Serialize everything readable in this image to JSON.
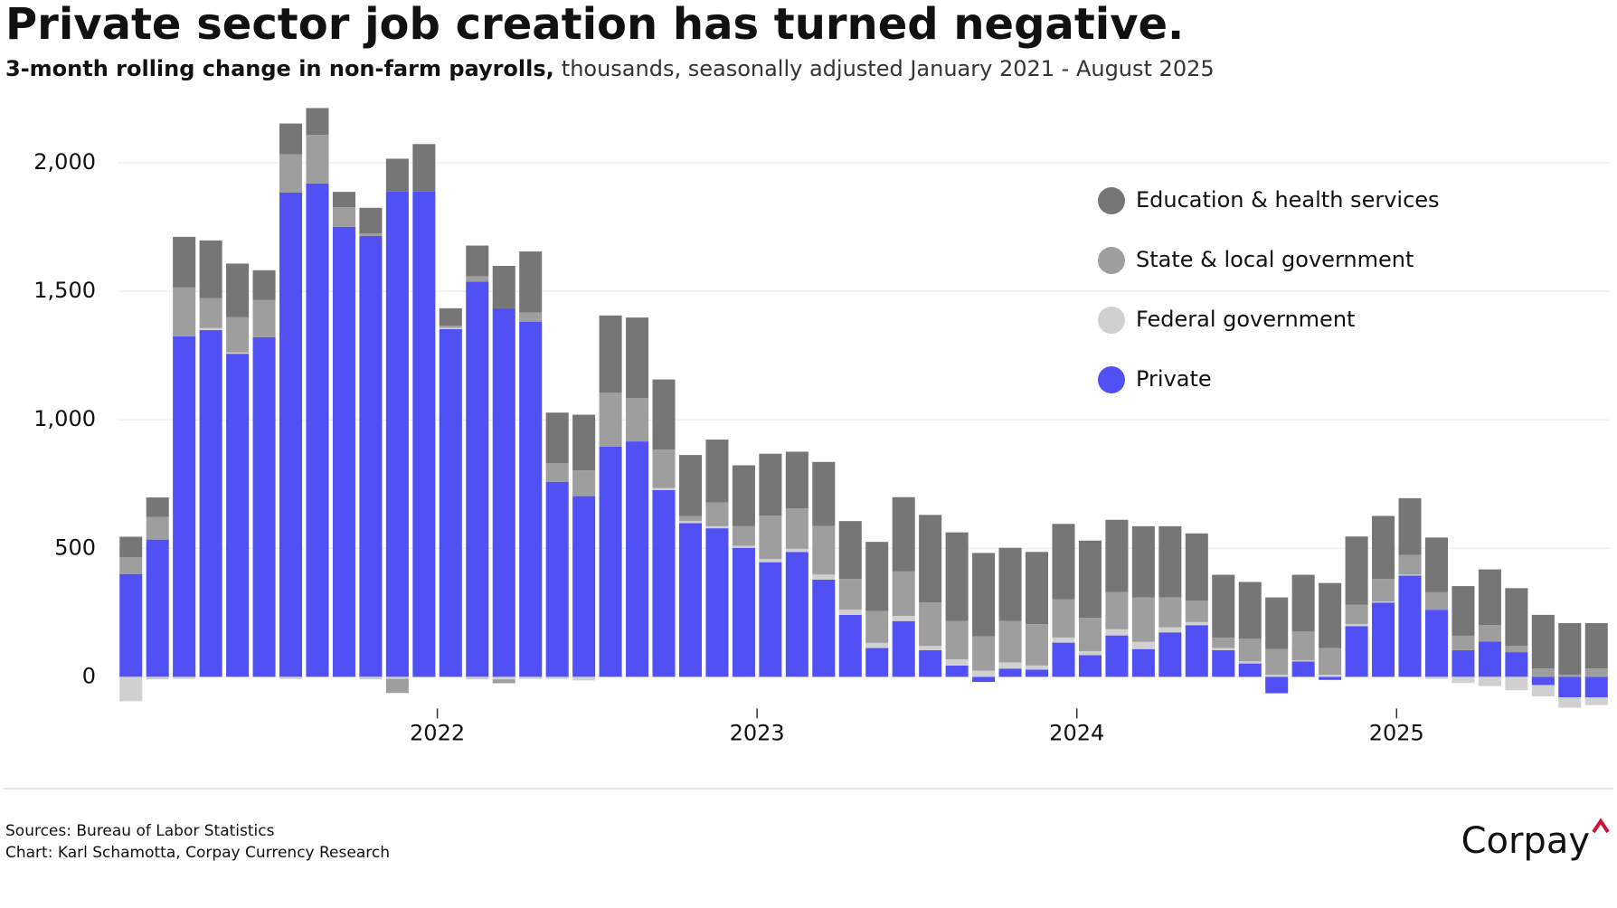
{
  "chart_data": {
    "type": "bar",
    "stacked": true,
    "title": "Private sector job creation has turned negative.",
    "subtitle_bold": "3-month rolling change in non-farm payrolls,",
    "subtitle": "thousands, seasonally adjusted January 2021 - August 2025",
    "categories": [
      null,
      null,
      null,
      null,
      null,
      null,
      null,
      null,
      null,
      null,
      null,
      null,
      "2022",
      null,
      null,
      null,
      null,
      null,
      null,
      null,
      null,
      null,
      null,
      null,
      "2023",
      null,
      null,
      null,
      null,
      null,
      null,
      null,
      null,
      null,
      null,
      null,
      "2024",
      null,
      null,
      null,
      null,
      null,
      null,
      null,
      null,
      null,
      null,
      null,
      "2025",
      null,
      null,
      null,
      null,
      null,
      null,
      null
    ],
    "series": [
      {
        "name": "Private",
        "color": "#5050f5",
        "values": [
          400,
          534,
          1325,
          1349,
          1257,
          1321,
          1884,
          1920,
          1751,
          1715,
          1888,
          1888,
          1353,
          1538,
          1434,
          1382,
          759,
          703,
          896,
          916,
          727,
          598,
          578,
          502,
          446,
          486,
          378,
          241,
          112,
          217,
          104,
          44,
          -20,
          32,
          28,
          133,
          84,
          161,
          108,
          173,
          201,
          104,
          52,
          -64,
          60,
          -12,
          197,
          289,
          394,
          261,
          104,
          137,
          96,
          -32,
          -80,
          -80
        ]
      },
      {
        "name": "Federal government",
        "color": "#d0d0d0",
        "values": [
          -95,
          -10,
          -8,
          8,
          5,
          0,
          -8,
          0,
          0,
          -10,
          -8,
          -3,
          5,
          -10,
          -10,
          -8,
          -8,
          -14,
          0,
          0,
          8,
          8,
          8,
          8,
          12,
          12,
          20,
          20,
          20,
          20,
          16,
          24,
          24,
          24,
          16,
          20,
          16,
          24,
          28,
          20,
          12,
          8,
          8,
          8,
          4,
          8,
          8,
          4,
          4,
          -8,
          -24,
          -36,
          -52,
          -44,
          -40,
          -30
        ]
      },
      {
        "name": "State & local government",
        "color": "#9e9e9e",
        "values": [
          65,
          88,
          190,
          116,
          137,
          145,
          149,
          189,
          76,
          10,
          -55,
          0,
          8,
          20,
          -15,
          36,
          72,
          100,
          209,
          169,
          149,
          20,
          92,
          76,
          169,
          157,
          189,
          120,
          124,
          173,
          169,
          149,
          133,
          161,
          161,
          149,
          129,
          145,
          173,
          116,
          84,
          40,
          88,
          100,
          112,
          104,
          76,
          88,
          76,
          68,
          56,
          64,
          24,
          32,
          8,
          32
        ]
      },
      {
        "name": "Education & health services",
        "color": "#767676",
        "values": [
          80,
          76,
          197,
          225,
          209,
          116,
          120,
          104,
          60,
          100,
          128,
          185,
          68,
          120,
          165,
          237,
          197,
          217,
          301,
          313,
          273,
          237,
          245,
          237,
          241,
          221,
          249,
          225,
          269,
          289,
          341,
          345,
          325,
          285,
          281,
          293,
          301,
          281,
          277,
          277,
          261,
          245,
          221,
          201,
          221,
          253,
          265,
          245,
          221,
          213,
          193,
          217,
          225,
          209,
          201,
          177
        ]
      }
    ],
    "legend_order": [
      3,
      2,
      1,
      0
    ],
    "ylim": [
      -150,
      2250
    ],
    "yticks": [
      0,
      500,
      {
        "value": 1000,
        "label": "1,000"
      },
      {
        "value": 1500,
        "label": "1,500"
      },
      {
        "value": 2000,
        "label": "2,000"
      }
    ],
    "grid": true,
    "legend_position": "upper right",
    "sources": "Sources: Bureau of Labor Statistics",
    "credit": "Chart: Karl Schamotta, Corpay Currency Research",
    "logo": "Corpay"
  }
}
